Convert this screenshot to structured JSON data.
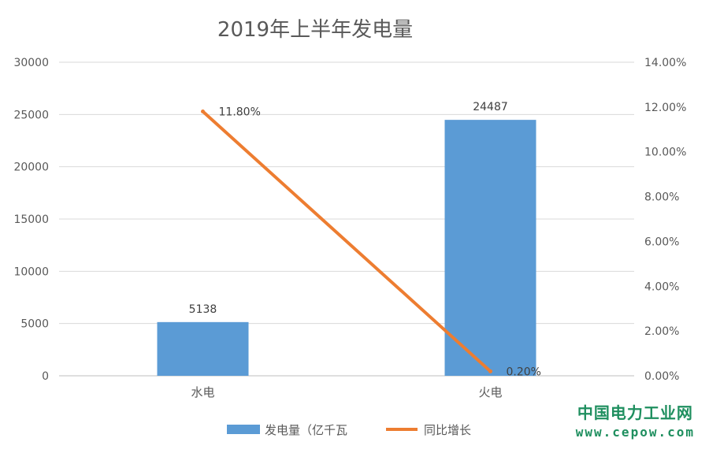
{
  "chart_data": {
    "type": "bar",
    "title": "2019年上半年发电量",
    "categories": [
      "水电",
      "火电"
    ],
    "series": [
      {
        "name": "发电量（亿千瓦",
        "type": "bar",
        "axis": "left",
        "color": "#5b9bd5",
        "values": [
          5138,
          24487
        ],
        "data_labels": [
          "5138",
          "24487"
        ]
      },
      {
        "name": "同比增长",
        "type": "line",
        "axis": "right",
        "color": "#ed7d31",
        "values": [
          11.8,
          0.2
        ],
        "data_labels": [
          "11.80%",
          "0.20%"
        ]
      }
    ],
    "y_left": {
      "min": 0,
      "max": 30000,
      "ticks": [
        "0",
        "5000",
        "10000",
        "15000",
        "20000",
        "25000",
        "30000"
      ]
    },
    "y_right": {
      "min": 0,
      "max": 14,
      "unit": "%",
      "ticks": [
        "0.00%",
        "2.00%",
        "4.00%",
        "6.00%",
        "8.00%",
        "10.00%",
        "12.00%",
        "14.00%"
      ]
    },
    "grid": true,
    "legend_position": "bottom"
  },
  "watermark": {
    "title": "中国电力工业网",
    "url": "www.cepow.com"
  }
}
